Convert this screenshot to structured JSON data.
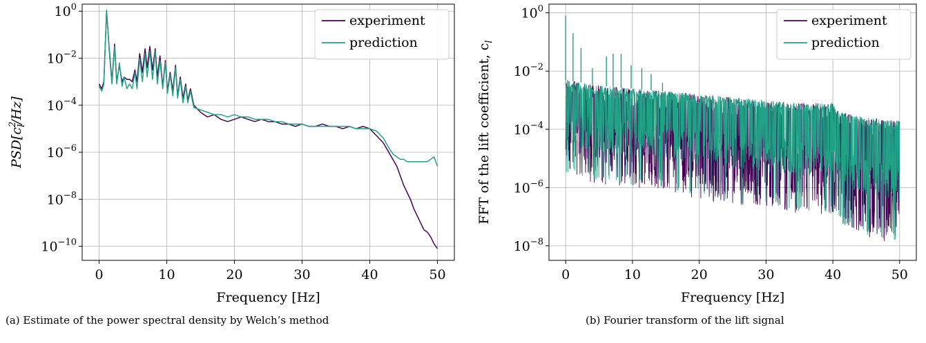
{
  "figure": {
    "panels": [
      {
        "caption": "(a) Estimate of the power spectral density by Welch’s method",
        "ylabel_prefix": "PSD[c",
        "ylabel_sub": "l",
        "ylabel_sup": "2",
        "ylabel_suffix": "/Hz]"
      },
      {
        "caption": "(b) Fourier transform of the lift signal",
        "ylabel_prefix": "FFT of the lift coefficient, c",
        "ylabel_sub": "l",
        "ylabel_sup": "",
        "ylabel_suffix": ""
      }
    ]
  },
  "chart_data": [
    {
      "type": "line",
      "xlabel": "Frequency [Hz]",
      "ylabel": "PSD[c_l^2/Hz]",
      "xlim": [
        -2.5,
        52.5
      ],
      "ylim_log10": [
        -10.6,
        0.3
      ],
      "log_y": true,
      "grid": true,
      "legend_position": "top-right",
      "x_ticks": [
        0,
        10,
        20,
        30,
        40,
        50
      ],
      "y_ticks": [
        {
          "base": "10",
          "exp": "0",
          "v": 0
        },
        {
          "base": "10",
          "exp": "−2",
          "v": -2
        },
        {
          "base": "10",
          "exp": "−4",
          "v": -4
        },
        {
          "base": "10",
          "exp": "−6",
          "v": -6
        },
        {
          "base": "10",
          "exp": "−8",
          "v": -8
        },
        {
          "base": "10",
          "exp": "−10",
          "v": -10
        }
      ],
      "series": [
        {
          "name": "experiment",
          "color": "#440154",
          "x": [
            0.0,
            0.4,
            0.7,
            1.1,
            1.5,
            1.9,
            2.3,
            2.6,
            3.0,
            3.4,
            3.7,
            4.1,
            4.5,
            4.9,
            5.3,
            5.6,
            6.0,
            6.4,
            6.8,
            7.1,
            7.5,
            7.9,
            8.3,
            8.6,
            9.0,
            9.4,
            9.8,
            10.1,
            10.5,
            10.9,
            11.3,
            11.6,
            12.0,
            12.4,
            12.8,
            13.1,
            13.5,
            14.0,
            15.0,
            16.0,
            17.0,
            18.0,
            19.0,
            20.0,
            21.0,
            22.0,
            23.0,
            24.0,
            25.0,
            26.0,
            27.0,
            28.0,
            29.0,
            30.0,
            31.0,
            32.0,
            33.0,
            34.0,
            35.0,
            36.0,
            37.0,
            38.0,
            39.0,
            40.0,
            41.0,
            42.0,
            43.0,
            44.0,
            44.5,
            45.0,
            45.5,
            46.0,
            46.5,
            47.0,
            47.5,
            48.0,
            48.5,
            49.0,
            49.5,
            50.0
          ],
          "log10_y": [
            -3.1,
            -3.3,
            -3.0,
            0.0,
            -1.6,
            -3.0,
            -1.4,
            -3.0,
            -2.3,
            -3.0,
            -2.8,
            -2.9,
            -2.9,
            -3.0,
            -2.5,
            -3.0,
            -1.8,
            -2.6,
            -1.6,
            -2.4,
            -1.5,
            -2.5,
            -1.6,
            -2.8,
            -1.9,
            -3.2,
            -2.1,
            -3.4,
            -2.6,
            -3.4,
            -2.3,
            -3.6,
            -2.8,
            -3.7,
            -3.1,
            -3.8,
            -3.3,
            -4.0,
            -4.3,
            -4.5,
            -4.4,
            -4.6,
            -4.7,
            -4.6,
            -4.5,
            -4.6,
            -4.7,
            -4.6,
            -4.7,
            -4.7,
            -4.8,
            -4.8,
            -4.9,
            -4.8,
            -4.9,
            -4.9,
            -4.8,
            -4.9,
            -4.9,
            -5.0,
            -4.9,
            -5.0,
            -4.9,
            -5.0,
            -5.3,
            -5.6,
            -6.1,
            -6.6,
            -7.0,
            -7.4,
            -7.7,
            -8.0,
            -8.4,
            -8.7,
            -9.0,
            -9.3,
            -9.4,
            -9.6,
            -9.9,
            -10.1
          ]
        },
        {
          "name": "prediction",
          "color": "#21a185",
          "x": [
            0.0,
            0.4,
            0.7,
            1.1,
            1.5,
            1.9,
            2.3,
            2.6,
            3.0,
            3.4,
            3.7,
            4.1,
            4.5,
            4.9,
            5.3,
            5.6,
            6.0,
            6.4,
            6.8,
            7.1,
            7.5,
            7.9,
            8.3,
            8.6,
            9.0,
            9.4,
            9.8,
            10.1,
            10.5,
            10.9,
            11.3,
            11.6,
            12.0,
            12.4,
            12.8,
            13.1,
            13.5,
            14.0,
            15.0,
            16.0,
            17.0,
            18.0,
            19.0,
            20.0,
            21.0,
            22.0,
            23.0,
            24.0,
            25.0,
            26.0,
            27.0,
            28.0,
            29.0,
            30.0,
            31.0,
            32.0,
            33.0,
            34.0,
            35.0,
            36.0,
            37.0,
            38.0,
            39.0,
            40.0,
            41.0,
            42.0,
            43.0,
            43.5,
            44.0,
            44.5,
            45.0,
            45.5,
            46.0,
            46.5,
            47.0,
            47.5,
            48.0,
            48.5,
            49.0,
            49.5,
            50.0
          ],
          "log10_y": [
            -3.2,
            -3.4,
            -3.1,
            0.05,
            -1.7,
            -3.1,
            -1.5,
            -3.1,
            -2.2,
            -3.2,
            -2.8,
            -3.3,
            -3.1,
            -3.3,
            -2.6,
            -3.3,
            -2.0,
            -3.0,
            -1.8,
            -2.8,
            -1.7,
            -2.9,
            -1.7,
            -3.1,
            -2.1,
            -3.3,
            -2.2,
            -3.5,
            -2.7,
            -3.6,
            -2.4,
            -3.7,
            -2.9,
            -3.9,
            -3.2,
            -3.9,
            -3.4,
            -4.1,
            -4.2,
            -4.3,
            -4.4,
            -4.4,
            -4.5,
            -4.4,
            -4.5,
            -4.5,
            -4.6,
            -4.6,
            -4.6,
            -4.7,
            -4.7,
            -4.8,
            -4.8,
            -4.8,
            -4.9,
            -4.9,
            -4.9,
            -4.9,
            -4.9,
            -4.9,
            -4.9,
            -5.0,
            -5.0,
            -5.0,
            -5.1,
            -5.4,
            -5.9,
            -6.1,
            -6.2,
            -6.3,
            -6.3,
            -6.4,
            -6.4,
            -6.4,
            -6.4,
            -6.4,
            -6.4,
            -6.4,
            -6.3,
            -6.2,
            -6.6
          ]
        }
      ]
    },
    {
      "type": "line",
      "xlabel": "Frequency [Hz]",
      "ylabel": "FFT of the lift coefficient, c_l",
      "xlim": [
        -2.5,
        52.5
      ],
      "ylim_log10": [
        -8.5,
        0.3
      ],
      "log_y": true,
      "grid": true,
      "legend_position": "top-right",
      "x_ticks": [
        0,
        10,
        20,
        30,
        40,
        50
      ],
      "y_ticks": [
        {
          "base": "10",
          "exp": "0",
          "v": 0
        },
        {
          "base": "10",
          "exp": "−2",
          "v": -2
        },
        {
          "base": "10",
          "exp": "−4",
          "v": -4
        },
        {
          "base": "10",
          "exp": "−6",
          "v": -6
        },
        {
          "base": "10",
          "exp": "−8",
          "v": -8
        }
      ],
      "envelope": {
        "x": [
          0,
          5,
          10,
          15,
          20,
          25,
          30,
          35,
          40,
          41,
          45,
          50
        ],
        "upper_log10": [
          -2.3,
          -2.5,
          -2.6,
          -2.7,
          -2.8,
          -2.9,
          -3.0,
          -3.1,
          -3.1,
          -3.4,
          -3.6,
          -3.7
        ],
        "lower_log10": [
          -5.2,
          -5.5,
          -5.6,
          -5.7,
          -6.0,
          -6.2,
          -6.3,
          -6.5,
          -6.6,
          -6.9,
          -7.3,
          -7.6
        ]
      },
      "peaks": [
        {
          "x": 0.0,
          "log10_y": -0.1
        },
        {
          "x": 1.1,
          "log10_y": -0.7
        },
        {
          "x": 2.3,
          "log10_y": -1.2
        },
        {
          "x": 4.0,
          "log10_y": -1.9
        },
        {
          "x": 6.1,
          "log10_y": -1.5
        },
        {
          "x": 7.1,
          "log10_y": -1.4
        },
        {
          "x": 8.3,
          "log10_y": -1.4
        },
        {
          "x": 9.8,
          "log10_y": -1.8
        },
        {
          "x": 11.4,
          "log10_y": -1.9
        },
        {
          "x": 12.8,
          "log10_y": -2.1
        },
        {
          "x": 14.5,
          "log10_y": -2.4
        }
      ],
      "series": [
        {
          "name": "experiment",
          "color": "#440154"
        },
        {
          "name": "prediction",
          "color": "#21a185"
        }
      ]
    }
  ]
}
